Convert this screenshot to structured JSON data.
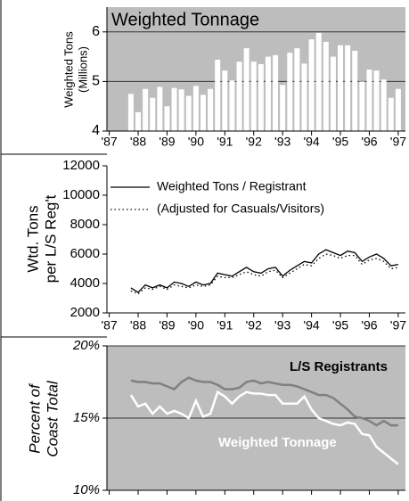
{
  "chart_data": [
    {
      "type": "bar",
      "title": "Weighted Tonnage",
      "ylabel": [
        "Weighted Tons",
        "(Millions)"
      ],
      "background": "#bdbdbd",
      "color": "#ffffff",
      "grid": true,
      "x": [
        1987.75,
        1988,
        1988.25,
        1988.5,
        1988.75,
        1989,
        1989.25,
        1989.5,
        1989.75,
        1990,
        1990.25,
        1990.5,
        1990.75,
        1991,
        1991.25,
        1991.5,
        1991.75,
        1992,
        1992.25,
        1992.5,
        1992.75,
        1993,
        1993.25,
        1993.5,
        1993.75,
        1994,
        1994.25,
        1994.5,
        1994.75,
        1995,
        1995.25,
        1995.5,
        1995.75,
        1996,
        1996.25,
        1996.5,
        1996.75,
        1997
      ],
      "values": [
        4.75,
        4.38,
        4.85,
        4.67,
        4.89,
        4.5,
        4.87,
        4.84,
        4.71,
        4.91,
        4.73,
        4.85,
        5.44,
        5.22,
        5.02,
        5.4,
        5.67,
        5.4,
        5.35,
        5.5,
        5.53,
        4.93,
        5.58,
        5.67,
        5.36,
        5.85,
        5.98,
        5.8,
        5.5,
        5.73,
        5.73,
        5.62,
        5.0,
        5.24,
        5.22,
        5.04,
        4.67,
        4.85
      ],
      "xlim": [
        1986.92,
        1997.25
      ],
      "ylim": [
        4,
        6.5
      ],
      "yticks": [
        4,
        5,
        6
      ],
      "xticks": [
        {
          "value": 1987,
          "label": "'87"
        },
        {
          "value": 1988,
          "label": "'88"
        },
        {
          "value": 1989,
          "label": "'89"
        },
        {
          "value": 1990,
          "label": "'90"
        },
        {
          "value": 1991,
          "label": "'91"
        },
        {
          "value": 1992,
          "label": "'92"
        },
        {
          "value": 1993,
          "label": "'93"
        },
        {
          "value": 1994,
          "label": "'94"
        },
        {
          "value": 1995,
          "label": "'95"
        },
        {
          "value": 1996,
          "label": "'96"
        },
        {
          "value": 1997,
          "label": "'97"
        }
      ]
    },
    {
      "type": "line",
      "ylabel": [
        "Wtd. Tons",
        "per L/S Reg't"
      ],
      "background": "#ffffff",
      "grid": false,
      "legend": "upper left",
      "x": [
        1987.75,
        1988,
        1988.25,
        1988.5,
        1988.75,
        1989,
        1989.25,
        1989.5,
        1989.75,
        1990,
        1990.25,
        1990.5,
        1990.75,
        1991,
        1991.25,
        1991.5,
        1991.75,
        1992,
        1992.25,
        1992.5,
        1992.75,
        1993,
        1993.25,
        1993.5,
        1993.75,
        1994,
        1994.25,
        1994.5,
        1994.75,
        1995,
        1995.25,
        1995.5,
        1995.75,
        1996,
        1996.25,
        1996.5,
        1996.75,
        1997
      ],
      "series": [
        {
          "name": "Weighted Tons / Registrant",
          "color": "#000000",
          "dash": "solid",
          "values": [
            3700,
            3400,
            3900,
            3700,
            3900,
            3700,
            4100,
            4000,
            3800,
            4100,
            3900,
            4000,
            4700,
            4600,
            4500,
            4800,
            5100,
            4800,
            4700,
            5000,
            5100,
            4500,
            4900,
            5200,
            5500,
            5400,
            6000,
            6300,
            6100,
            5900,
            6200,
            6100,
            5500,
            5800,
            6000,
            5700,
            5200,
            5300
          ]
        },
        {
          "name": "(Adjusted for Casuals/Visitors)",
          "color": "#000000",
          "dash": "dotted",
          "values": [
            3500,
            3300,
            3700,
            3600,
            3800,
            3600,
            3900,
            3800,
            3700,
            3900,
            3800,
            3900,
            4500,
            4400,
            4400,
            4600,
            4800,
            4600,
            4500,
            4800,
            4900,
            4400,
            4700,
            5000,
            5300,
            5200,
            5700,
            6000,
            5900,
            5700,
            5900,
            5900,
            5300,
            5600,
            5700,
            5500,
            5000,
            5100
          ]
        }
      ],
      "xlim": [
        1986.92,
        1997.25
      ],
      "ylim": [
        2000,
        12000
      ],
      "yticks": [
        2000,
        4000,
        6000,
        8000,
        10000,
        12000
      ],
      "xticks": [
        {
          "value": 1987,
          "label": "'87"
        },
        {
          "value": 1988,
          "label": "'88"
        },
        {
          "value": 1989,
          "label": "'89"
        },
        {
          "value": 1990,
          "label": "'90"
        },
        {
          "value": 1991,
          "label": "'91"
        },
        {
          "value": 1992,
          "label": "'92"
        },
        {
          "value": 1993,
          "label": "'93"
        },
        {
          "value": 1994,
          "label": "'94"
        },
        {
          "value": 1995,
          "label": "'95"
        },
        {
          "value": 1996,
          "label": "'96"
        },
        {
          "value": 1997,
          "label": "'97"
        }
      ]
    },
    {
      "type": "line",
      "ylabel": [
        "Percent of",
        "Coast Total"
      ],
      "background": "#bdbdbd",
      "grid": true,
      "x": [
        1987.75,
        1988,
        1988.25,
        1988.5,
        1988.75,
        1989,
        1989.25,
        1989.5,
        1989.75,
        1990,
        1990.25,
        1990.5,
        1990.75,
        1991,
        1991.25,
        1991.5,
        1991.75,
        1992,
        1992.25,
        1992.5,
        1992.75,
        1993,
        1993.25,
        1993.5,
        1993.75,
        1994,
        1994.25,
        1994.5,
        1994.75,
        1995,
        1995.25,
        1995.5,
        1995.75,
        1996,
        1996.25,
        1996.5,
        1996.75,
        1997
      ],
      "series": [
        {
          "name": "L/S Registrants",
          "color": "#808080",
          "dash": "solid",
          "values": [
            17.6,
            17.5,
            17.5,
            17.4,
            17.4,
            17.2,
            17.0,
            17.5,
            17.8,
            17.6,
            17.5,
            17.5,
            17.3,
            17.0,
            17.0,
            17.1,
            17.5,
            17.6,
            17.4,
            17.5,
            17.4,
            17.3,
            17.3,
            17.2,
            17.0,
            16.8,
            16.6,
            16.6,
            16.4,
            16.0,
            15.6,
            15.1,
            15.0,
            14.8,
            14.5,
            14.8,
            14.5,
            14.5
          ]
        },
        {
          "name": "Weighted Tonnage",
          "color": "#ffffff",
          "dash": "solid",
          "values": [
            16.6,
            15.8,
            16.0,
            15.3,
            15.8,
            15.3,
            15.5,
            15.3,
            15.0,
            16.2,
            15.1,
            15.3,
            16.8,
            16.5,
            16.0,
            16.5,
            16.8,
            16.7,
            16.7,
            16.6,
            16.6,
            16.0,
            16.0,
            16.0,
            16.5,
            15.6,
            15.0,
            14.8,
            14.6,
            14.5,
            14.7,
            14.6,
            13.9,
            13.8,
            13.0,
            12.6,
            12.2,
            11.8
          ]
        }
      ],
      "xlim": [
        1986.92,
        1997.25
      ],
      "ylim": [
        10,
        20
      ],
      "yticks": [
        {
          "value": 10,
          "label": "10%"
        },
        {
          "value": 15,
          "label": "15%"
        },
        {
          "value": 20,
          "label": "20%"
        }
      ],
      "xticks": [
        1987,
        1988,
        1989,
        1990,
        1991,
        1992,
        1993,
        1994,
        1995,
        1996,
        1997
      ]
    }
  ]
}
